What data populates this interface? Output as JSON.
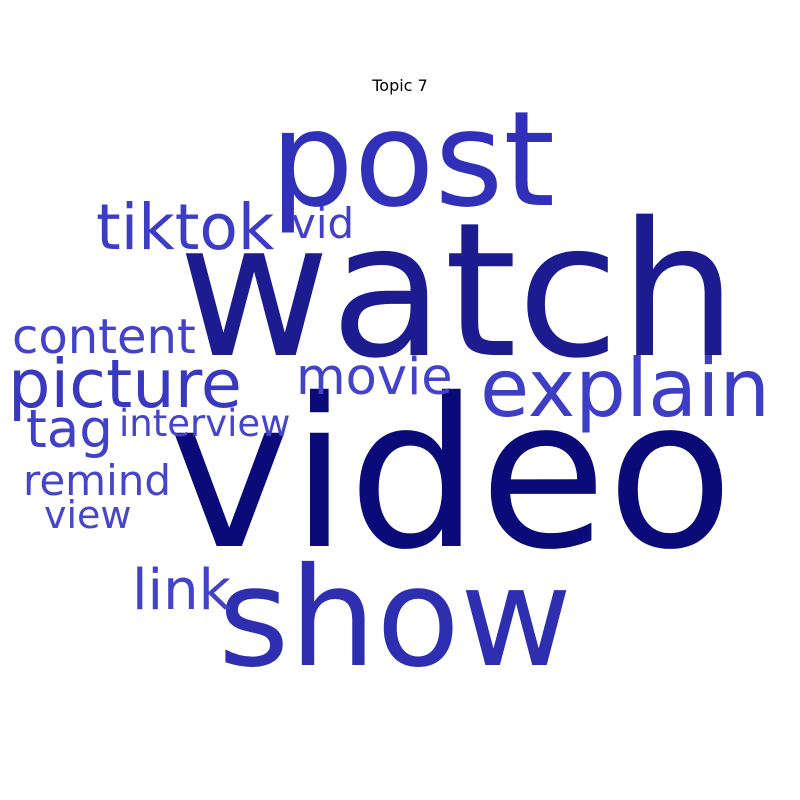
{
  "title": "Topic 7",
  "colors": {
    "darkest": "#0a0a78",
    "dark": "#1c1c90",
    "medium": "#2e2eb0",
    "light": "#3838c0",
    "lightest": "#4545cc"
  },
  "words": [
    {
      "id": "watch",
      "text": "watch",
      "color": "#1c1c90"
    },
    {
      "id": "video",
      "text": "video",
      "color": "#0a0a78"
    },
    {
      "id": "post",
      "text": "post",
      "color": "#3030b8"
    },
    {
      "id": "show",
      "text": "show",
      "color": "#2e2eb0"
    },
    {
      "id": "explain",
      "text": "explain",
      "color": "#3d3dc5"
    },
    {
      "id": "tiktok",
      "text": "tiktok",
      "color": "#3c3cc4"
    },
    {
      "id": "picture",
      "text": "picture",
      "color": "#3838c0"
    },
    {
      "id": "content",
      "text": "content",
      "color": "#4242ca"
    },
    {
      "id": "movie",
      "text": "movie",
      "color": "#4242ca"
    },
    {
      "id": "vid",
      "text": "vid",
      "color": "#4040c8"
    },
    {
      "id": "tag",
      "text": "tag",
      "color": "#4040c8"
    },
    {
      "id": "interview",
      "text": "interview",
      "color": "#4545cc"
    },
    {
      "id": "remind",
      "text": "remind",
      "color": "#4545cc"
    },
    {
      "id": "view",
      "text": "view",
      "color": "#4646cd"
    },
    {
      "id": "link",
      "text": "link",
      "color": "#4343ca"
    }
  ]
}
